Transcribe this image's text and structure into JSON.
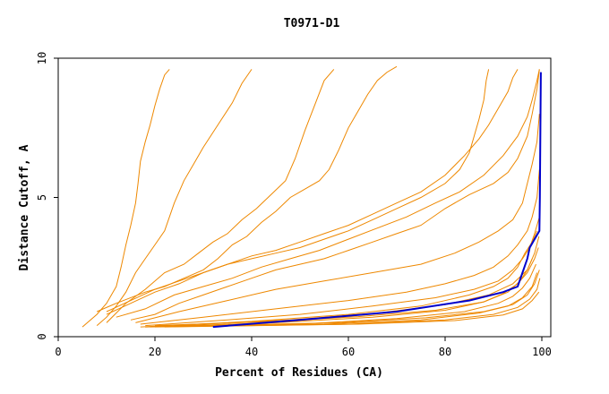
{
  "chart_data": {
    "type": "line",
    "title": "T0971-D1",
    "xlabel": "Percent of Residues (CA)",
    "ylabel": "Distance Cutoff, A",
    "xlim": [
      0,
      100
    ],
    "ylim": [
      0,
      10
    ],
    "xticks": [
      0,
      20,
      40,
      60,
      80,
      100
    ],
    "yticks": [
      0,
      5,
      10
    ],
    "grid": false,
    "legend": "none",
    "colors": {
      "highlight": "#0000cc",
      "other": "#ee8800",
      "axis": "#000000"
    },
    "highlight": {
      "points": [
        [
          32,
          0.35
        ],
        [
          50,
          0.6
        ],
        [
          70,
          0.9
        ],
        [
          85,
          1.3
        ],
        [
          92,
          1.6
        ],
        [
          95,
          1.8
        ],
        [
          96,
          2.3
        ],
        [
          97,
          2.8
        ],
        [
          97.5,
          3.2
        ],
        [
          98.5,
          3.5
        ],
        [
          99.5,
          3.8
        ],
        [
          99.6,
          5
        ],
        [
          99.7,
          7.5
        ],
        [
          99.8,
          9.5
        ]
      ]
    },
    "series": [
      {
        "points": [
          [
            5,
            0.35
          ],
          [
            8,
            0.8
          ],
          [
            10,
            1.2
          ],
          [
            12,
            1.8
          ],
          [
            13,
            2.5
          ],
          [
            14,
            3.3
          ],
          [
            15,
            4
          ],
          [
            16,
            4.8
          ],
          [
            16.5,
            5.5
          ],
          [
            17,
            6.3
          ],
          [
            18,
            7
          ],
          [
            19,
            7.6
          ],
          [
            20,
            8.3
          ],
          [
            21,
            8.9
          ],
          [
            22,
            9.4
          ],
          [
            23,
            9.6
          ]
        ]
      },
      {
        "points": [
          [
            8,
            0.4
          ],
          [
            10,
            0.7
          ],
          [
            12,
            1.1
          ],
          [
            14,
            1.6
          ],
          [
            16,
            2.3
          ],
          [
            18,
            2.8
          ],
          [
            20,
            3.3
          ],
          [
            22,
            3.8
          ],
          [
            24,
            4.8
          ],
          [
            26,
            5.6
          ],
          [
            28,
            6.2
          ],
          [
            30,
            6.8
          ],
          [
            33,
            7.6
          ],
          [
            36,
            8.4
          ],
          [
            38,
            9.1
          ],
          [
            40,
            9.6
          ]
        ]
      },
      {
        "points": [
          [
            10,
            0.5
          ],
          [
            14,
            1.2
          ],
          [
            18,
            1.7
          ],
          [
            22,
            2.3
          ],
          [
            26,
            2.6
          ],
          [
            29,
            3.0
          ],
          [
            32,
            3.4
          ],
          [
            35,
            3.7
          ],
          [
            38,
            4.2
          ],
          [
            41,
            4.6
          ],
          [
            44,
            5.1
          ],
          [
            47,
            5.6
          ],
          [
            49,
            6.4
          ],
          [
            51,
            7.4
          ],
          [
            53,
            8.3
          ],
          [
            55,
            9.2
          ],
          [
            57,
            9.6
          ]
        ]
      },
      {
        "points": [
          [
            8,
            0.9
          ],
          [
            12,
            1.2
          ],
          [
            18,
            1.6
          ],
          [
            22,
            1.8
          ],
          [
            26,
            2.1
          ],
          [
            30,
            2.4
          ],
          [
            33,
            2.8
          ],
          [
            36,
            3.3
          ],
          [
            39,
            3.6
          ],
          [
            42,
            4.1
          ],
          [
            45,
            4.5
          ],
          [
            48,
            5.0
          ],
          [
            51,
            5.3
          ],
          [
            54,
            5.6
          ],
          [
            56,
            6.0
          ],
          [
            58,
            6.7
          ],
          [
            60,
            7.5
          ],
          [
            62,
            8.1
          ],
          [
            64,
            8.7
          ],
          [
            66,
            9.2
          ],
          [
            68,
            9.5
          ],
          [
            70,
            9.7
          ]
        ]
      },
      {
        "points": [
          [
            10,
            0.9
          ],
          [
            15,
            1.3
          ],
          [
            20,
            1.7
          ],
          [
            25,
            2.0
          ],
          [
            30,
            2.3
          ],
          [
            35,
            2.6
          ],
          [
            40,
            2.8
          ],
          [
            45,
            3.0
          ],
          [
            50,
            3.2
          ],
          [
            55,
            3.5
          ],
          [
            60,
            3.8
          ],
          [
            65,
            4.2
          ],
          [
            70,
            4.6
          ],
          [
            75,
            5.0
          ],
          [
            80,
            5.5
          ],
          [
            83,
            6.0
          ],
          [
            85,
            6.6
          ],
          [
            86,
            7.2
          ],
          [
            87,
            7.8
          ],
          [
            88,
            8.5
          ],
          [
            88.5,
            9.2
          ],
          [
            89,
            9.6
          ]
        ]
      },
      {
        "points": [
          [
            10,
            0.8
          ],
          [
            15,
            1.2
          ],
          [
            20,
            1.6
          ],
          [
            25,
            1.9
          ],
          [
            30,
            2.3
          ],
          [
            35,
            2.6
          ],
          [
            40,
            2.9
          ],
          [
            45,
            3.1
          ],
          [
            50,
            3.4
          ],
          [
            55,
            3.7
          ],
          [
            60,
            4.0
          ],
          [
            65,
            4.4
          ],
          [
            70,
            4.8
          ],
          [
            75,
            5.2
          ],
          [
            80,
            5.8
          ],
          [
            84,
            6.5
          ],
          [
            87,
            7.1
          ],
          [
            89,
            7.6
          ],
          [
            91,
            8.2
          ],
          [
            93,
            8.8
          ],
          [
            94,
            9.3
          ],
          [
            95,
            9.6
          ]
        ]
      },
      {
        "points": [
          [
            12,
            0.7
          ],
          [
            18,
            1.0
          ],
          [
            24,
            1.5
          ],
          [
            30,
            1.8
          ],
          [
            36,
            2.1
          ],
          [
            42,
            2.5
          ],
          [
            48,
            2.8
          ],
          [
            54,
            3.1
          ],
          [
            60,
            3.5
          ],
          [
            66,
            3.9
          ],
          [
            72,
            4.3
          ],
          [
            78,
            4.8
          ],
          [
            83,
            5.2
          ],
          [
            88,
            5.8
          ],
          [
            92,
            6.5
          ],
          [
            95,
            7.2
          ],
          [
            97,
            7.9
          ],
          [
            98,
            8.5
          ],
          [
            99,
            9.2
          ],
          [
            99.5,
            9.6
          ]
        ]
      },
      {
        "points": [
          [
            15,
            0.6
          ],
          [
            20,
            0.8
          ],
          [
            25,
            1.2
          ],
          [
            30,
            1.5
          ],
          [
            35,
            1.8
          ],
          [
            40,
            2.1
          ],
          [
            45,
            2.4
          ],
          [
            50,
            2.6
          ],
          [
            55,
            2.8
          ],
          [
            60,
            3.1
          ],
          [
            65,
            3.4
          ],
          [
            70,
            3.7
          ],
          [
            75,
            4.0
          ],
          [
            80,
            4.6
          ],
          [
            85,
            5.1
          ],
          [
            90,
            5.5
          ],
          [
            93,
            5.9
          ],
          [
            95,
            6.4
          ],
          [
            97,
            7.2
          ],
          [
            98,
            8.0
          ],
          [
            99,
            8.9
          ],
          [
            99.5,
            9.6
          ]
        ]
      },
      {
        "points": [
          [
            16,
            0.5
          ],
          [
            25,
            0.9
          ],
          [
            35,
            1.3
          ],
          [
            45,
            1.7
          ],
          [
            55,
            2.0
          ],
          [
            65,
            2.3
          ],
          [
            75,
            2.6
          ],
          [
            82,
            3.0
          ],
          [
            87,
            3.4
          ],
          [
            91,
            3.8
          ],
          [
            94,
            4.2
          ],
          [
            96,
            4.8
          ],
          [
            97,
            5.5
          ],
          [
            98,
            6.2
          ],
          [
            99,
            7.0
          ],
          [
            99.5,
            8.0
          ]
        ]
      },
      {
        "points": [
          [
            17,
            0.45
          ],
          [
            30,
            0.7
          ],
          [
            45,
            1.0
          ],
          [
            60,
            1.3
          ],
          [
            72,
            1.6
          ],
          [
            80,
            1.9
          ],
          [
            86,
            2.2
          ],
          [
            90,
            2.5
          ],
          [
            93,
            2.9
          ],
          [
            95,
            3.3
          ],
          [
            97,
            3.8
          ],
          [
            98,
            4.3
          ],
          [
            99,
            5.0
          ],
          [
            99.5,
            6.0
          ]
        ]
      },
      {
        "points": [
          [
            18,
            0.4
          ],
          [
            35,
            0.6
          ],
          [
            50,
            0.8
          ],
          [
            65,
            1.1
          ],
          [
            78,
            1.4
          ],
          [
            86,
            1.7
          ],
          [
            91,
            2.0
          ],
          [
            94,
            2.4
          ],
          [
            96,
            2.8
          ],
          [
            97.5,
            3.2
          ],
          [
            98.5,
            3.7
          ],
          [
            99.5,
            4.3
          ]
        ]
      },
      {
        "points": [
          [
            17,
            0.35
          ],
          [
            40,
            0.55
          ],
          [
            60,
            0.8
          ],
          [
            75,
            1.1
          ],
          [
            85,
            1.5
          ],
          [
            90,
            1.8
          ],
          [
            93,
            2.1
          ],
          [
            95,
            2.5
          ],
          [
            96.5,
            3.0
          ],
          [
            98,
            3.4
          ],
          [
            99,
            3.8
          ]
        ]
      },
      {
        "points": [
          [
            18,
            0.35
          ],
          [
            45,
            0.5
          ],
          [
            65,
            0.7
          ],
          [
            80,
            0.95
          ],
          [
            88,
            1.25
          ],
          [
            92,
            1.55
          ],
          [
            95,
            1.9
          ],
          [
            97,
            2.3
          ],
          [
            98.5,
            2.8
          ],
          [
            99.3,
            3.2
          ]
        ]
      },
      {
        "points": [
          [
            19,
            0.35
          ],
          [
            50,
            0.45
          ],
          [
            70,
            0.65
          ],
          [
            84,
            0.9
          ],
          [
            91,
            1.2
          ],
          [
            94,
            1.45
          ],
          [
            96,
            1.75
          ],
          [
            97.5,
            2.1
          ],
          [
            98.8,
            2.6
          ]
        ]
      },
      {
        "points": [
          [
            18,
            0.35
          ],
          [
            55,
            0.45
          ],
          [
            75,
            0.6
          ],
          [
            87,
            0.85
          ],
          [
            93,
            1.1
          ],
          [
            96,
            1.4
          ],
          [
            98,
            1.8
          ],
          [
            99,
            2.3
          ]
        ]
      },
      {
        "points": [
          [
            20,
            0.35
          ],
          [
            60,
            0.45
          ],
          [
            80,
            0.6
          ],
          [
            90,
            0.8
          ],
          [
            95,
            1.05
          ],
          [
            97.5,
            1.35
          ],
          [
            99,
            1.7
          ],
          [
            99.6,
            2.1
          ]
        ]
      },
      {
        "points": [
          [
            22,
            0.35
          ],
          [
            62,
            0.45
          ],
          [
            82,
            0.58
          ],
          [
            92,
            0.78
          ],
          [
            96,
            1.0
          ],
          [
            98,
            1.3
          ],
          [
            99.4,
            1.6
          ]
        ]
      },
      {
        "points": [
          [
            20,
            0.4
          ],
          [
            45,
            0.55
          ],
          [
            62,
            0.72
          ],
          [
            78,
            0.95
          ],
          [
            88,
            1.25
          ],
          [
            93,
            1.6
          ],
          [
            95.5,
            2.0
          ],
          [
            97,
            2.4
          ],
          [
            98,
            2.8
          ]
        ]
      },
      {
        "points": [
          [
            25,
            0.38
          ],
          [
            58,
            0.5
          ],
          [
            76,
            0.68
          ],
          [
            88,
            0.9
          ],
          [
            94,
            1.15
          ],
          [
            97,
            1.5
          ],
          [
            98.5,
            1.9
          ],
          [
            99.5,
            2.4
          ]
        ]
      },
      {
        "points": [
          [
            24,
            0.4
          ],
          [
            48,
            0.6
          ],
          [
            66,
            0.85
          ],
          [
            80,
            1.15
          ],
          [
            89,
            1.5
          ],
          [
            94,
            1.9
          ],
          [
            97,
            2.4
          ],
          [
            98.5,
            3.0
          ],
          [
            99.4,
            3.6
          ]
        ]
      }
    ]
  }
}
